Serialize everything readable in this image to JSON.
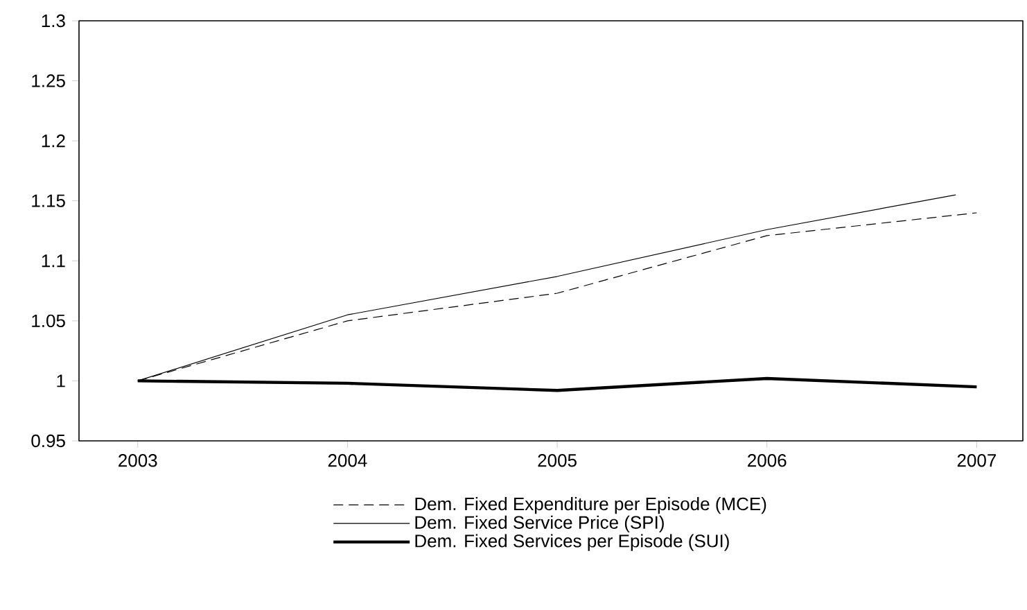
{
  "chart_data": {
    "type": "line",
    "x": [
      2003,
      2004,
      2005,
      2006,
      2007
    ],
    "series": [
      {
        "name": "Dem. Fixed Expenditure per Episode (MCE)",
        "color": "#000000",
        "line_style": "dashed",
        "values": [
          1,
          1.05,
          1.073,
          1.121,
          1.14
        ]
      },
      {
        "name": "Dem. Fixed Service Price (SPI)",
        "color": "#000000",
        "line_style": "solid",
        "x": [
          2003,
          2004,
          2005,
          2006,
          2006.9
        ],
        "values": [
          1,
          1.055,
          1.087,
          1.126,
          1.155
        ]
      },
      {
        "name": "Dem. Fixed Services per Episode (SUI)",
        "color": "#000000",
        "line_style": "solid",
        "values": [
          1,
          0.998,
          0.992,
          1.002,
          0.995
        ]
      }
    ],
    "xlim": [
      2002.72,
      2007.22
    ],
    "xticks": [
      2003,
      2004,
      2005,
      2006,
      2007
    ],
    "ylim": [
      0.95,
      1.3
    ],
    "yticks": [
      0.95,
      1,
      1.05,
      1.1,
      1.15,
      1.2,
      1.25,
      1.3
    ],
    "grid": false,
    "legend": "bottom",
    "marker": "none"
  }
}
